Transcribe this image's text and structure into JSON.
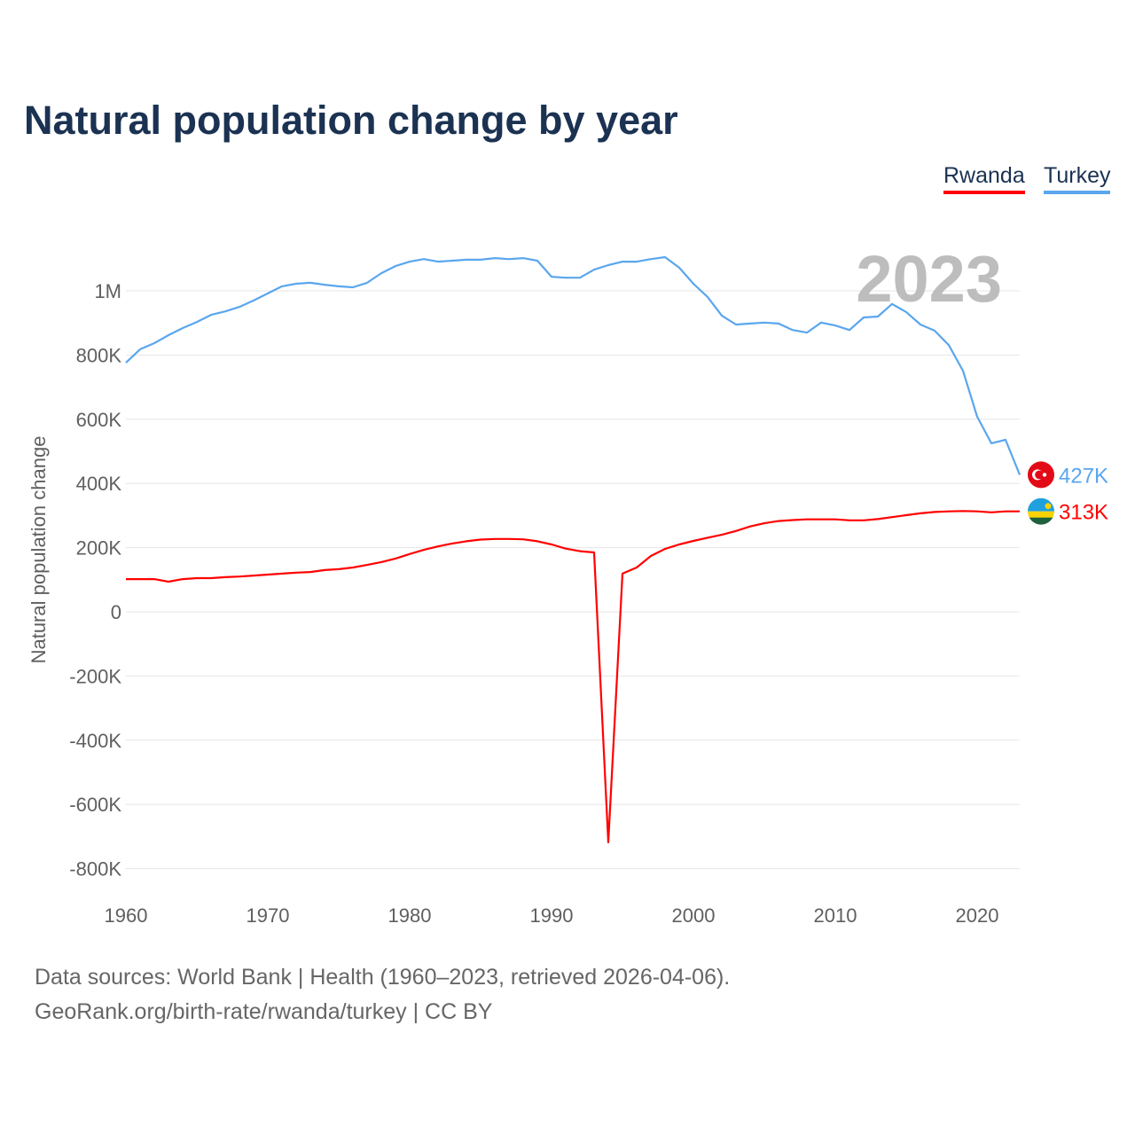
{
  "title": "Natural population change by year",
  "legend": [
    {
      "name": "Rwanda",
      "color": "#ff0000"
    },
    {
      "name": "Turkey",
      "color": "#5aa6ee"
    }
  ],
  "year_watermark": "2023",
  "footer": {
    "line1": "Data sources: World Bank | Health (1960–2023, retrieved 2026-04-06).",
    "line2": "GeoRank.org/birth-rate/rwanda/turkey | CC BY"
  },
  "chart_data": {
    "type": "line",
    "title": "Natural population change by year",
    "xlabel": "",
    "ylabel": "Natural population change",
    "xlim": [
      1960,
      2023
    ],
    "ylim": [
      -800000,
      1000000
    ],
    "x_ticks": [
      1960,
      1970,
      1980,
      1990,
      2000,
      2010,
      2020
    ],
    "y_ticks": [
      -800000,
      -600000,
      -400000,
      -200000,
      0,
      200000,
      400000,
      600000,
      800000,
      1000000
    ],
    "y_tick_labels": [
      "-800K",
      "-600K",
      "-400K",
      "-200K",
      "0",
      "200K",
      "400K",
      "600K",
      "800K",
      "1M"
    ],
    "grid": true,
    "legend_position": "top-right",
    "x_start": 1960,
    "series": [
      {
        "name": "Rwanda",
        "color": "#ff0000",
        "end_label": "313K",
        "values": [
          102000,
          102000,
          102000,
          94000,
          102000,
          105000,
          105000,
          108000,
          110000,
          113000,
          116000,
          119000,
          122000,
          124000,
          130000,
          133000,
          138000,
          146000,
          155000,
          166000,
          180000,
          193000,
          204000,
          213000,
          220000,
          225000,
          227000,
          227000,
          226000,
          220000,
          210000,
          197000,
          189000,
          185000,
          -718000,
          119000,
          138000,
          174000,
          196000,
          210000,
          221000,
          231000,
          240000,
          252000,
          266000,
          276000,
          283000,
          286000,
          288000,
          288000,
          288000,
          285000,
          285000,
          289000,
          295000,
          301000,
          307000,
          311000,
          313000,
          314000,
          313000,
          310000,
          313000,
          313000
        ]
      },
      {
        "name": "Turkey",
        "color": "#5aa6ee",
        "end_label": "427K",
        "values": [
          776000,
          818000,
          837000,
          862000,
          884000,
          903000,
          925000,
          936000,
          950000,
          970000,
          992000,
          1014000,
          1022000,
          1025000,
          1019000,
          1014000,
          1011000,
          1025000,
          1055000,
          1077000,
          1091000,
          1099000,
          1091000,
          1094000,
          1097000,
          1097000,
          1102000,
          1099000,
          1102000,
          1094000,
          1044000,
          1041000,
          1041000,
          1066000,
          1080000,
          1091000,
          1091000,
          1099000,
          1105000,
          1072000,
          1022000,
          981000,
          923000,
          895000,
          898000,
          901000,
          898000,
          878000,
          870000,
          901000,
          892000,
          878000,
          917000,
          920000,
          959000,
          934000,
          895000,
          876000,
          831000,
          751000,
          608000,
          525000,
          536000,
          427000
        ]
      }
    ]
  }
}
